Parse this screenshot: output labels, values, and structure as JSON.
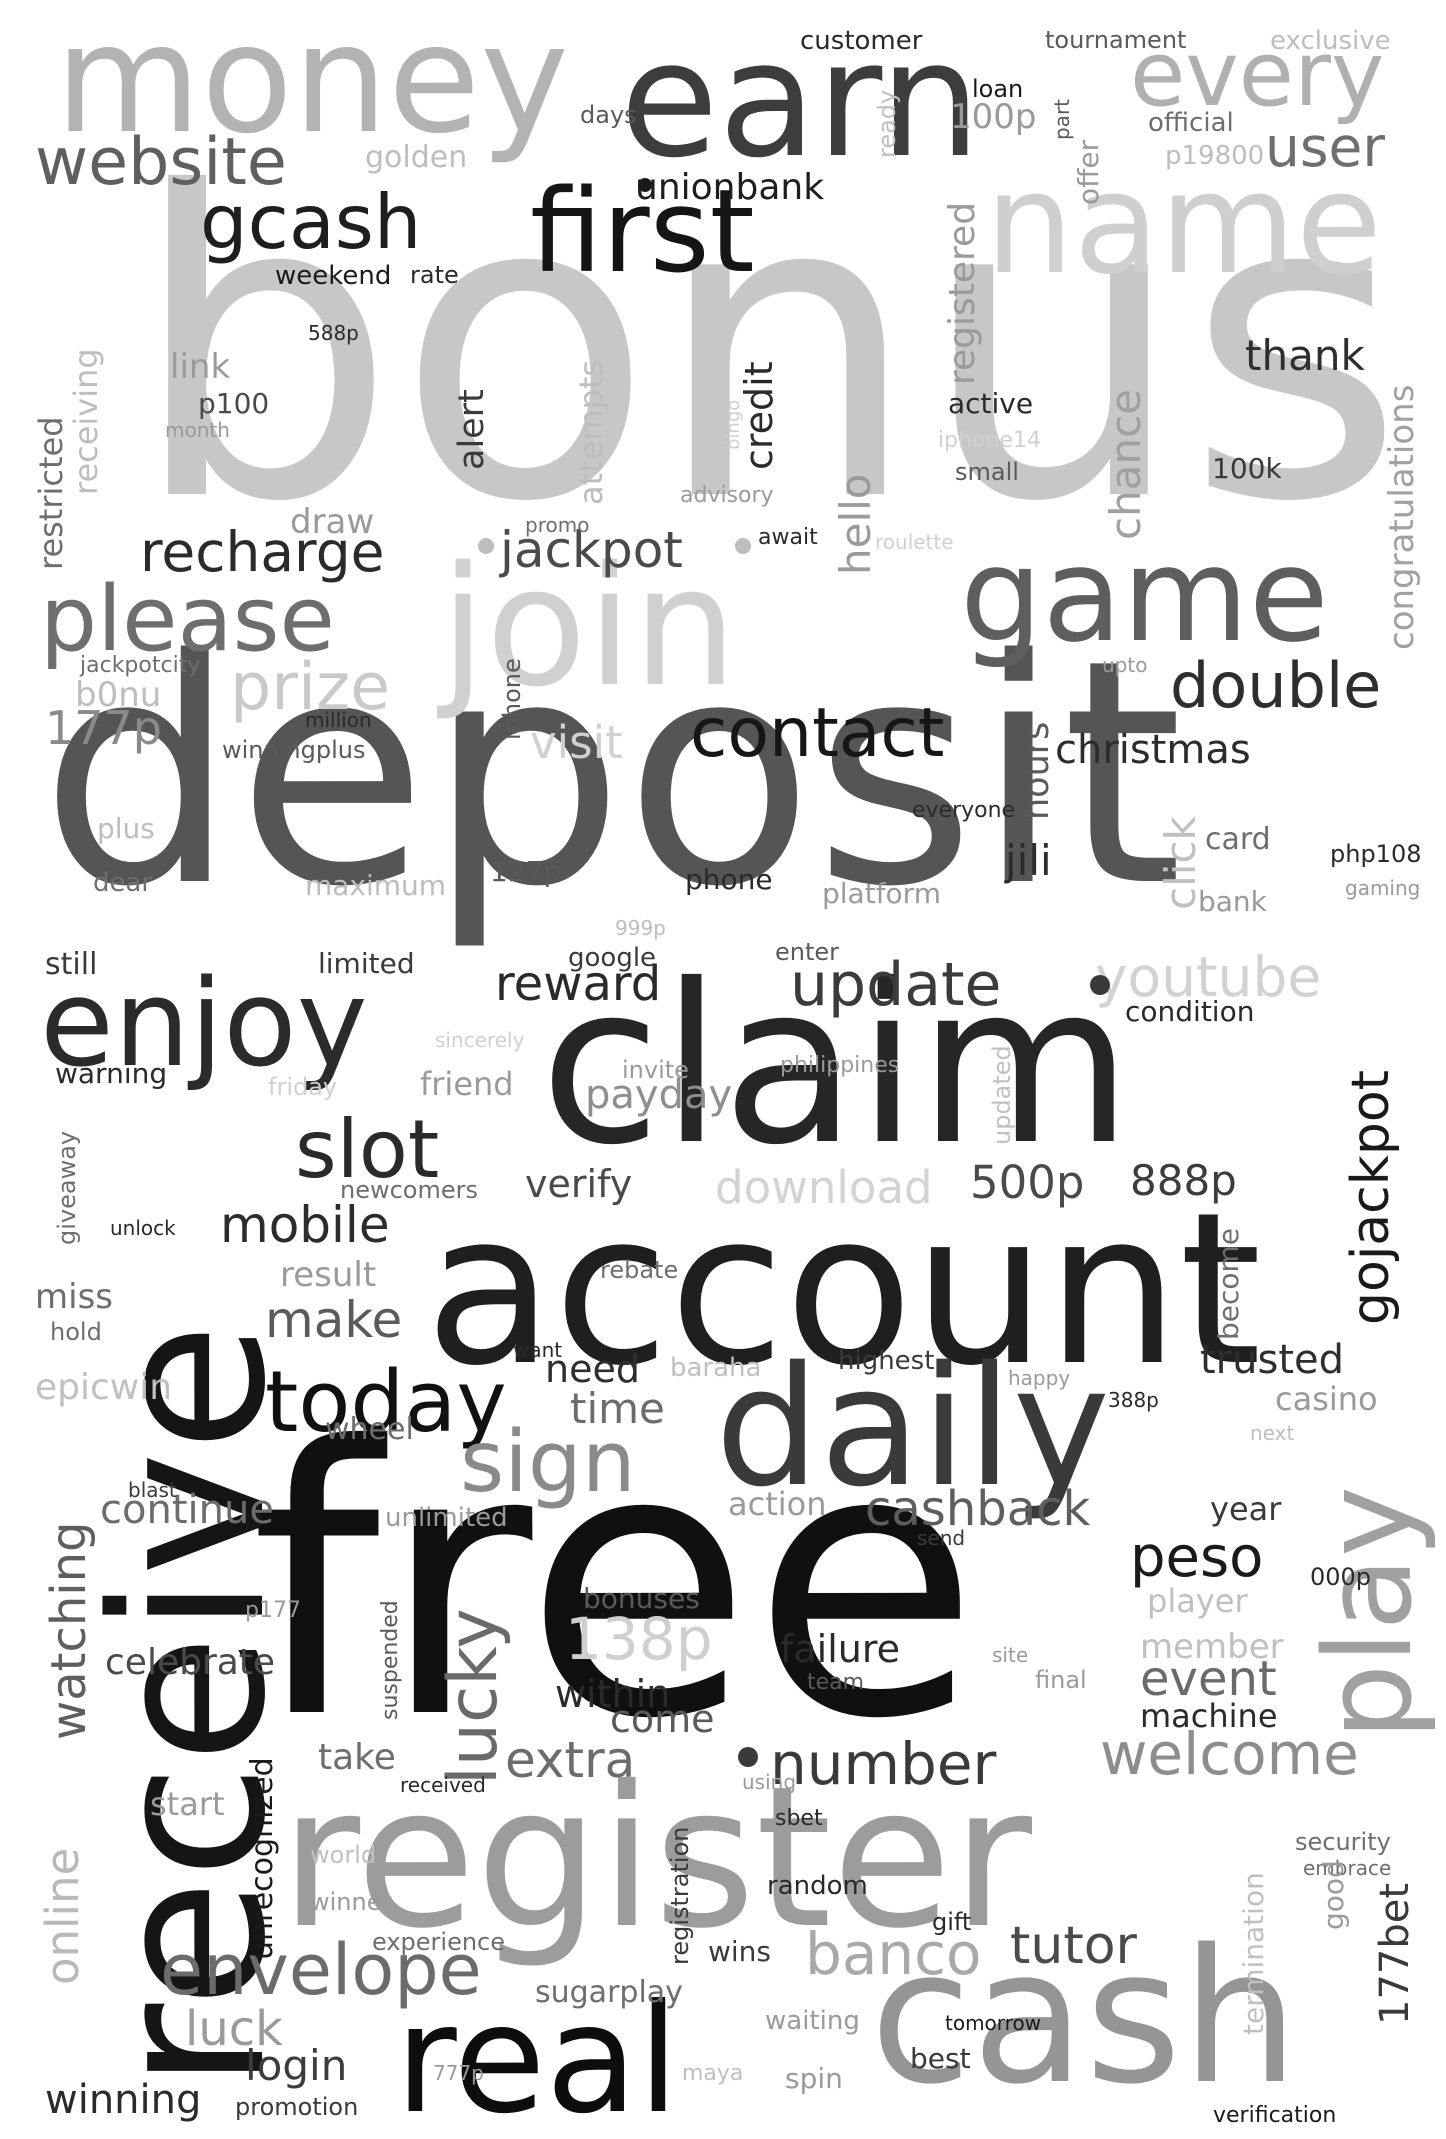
{
  "words": [
    {
      "text": "bonus",
      "color": "#c7c7c7"
    },
    {
      "text": "deposit",
      "color": "#555555"
    },
    {
      "text": "free",
      "color": "#101010"
    },
    {
      "text": "account",
      "color": "#1f1f1f"
    },
    {
      "text": "claim",
      "color": "#262626"
    },
    {
      "text": "receive",
      "color": "#151515"
    },
    {
      "text": "register",
      "color": "#9c9c9c"
    },
    {
      "text": "cash",
      "color": "#959595"
    },
    {
      "text": "join",
      "color": "#d0d0d0"
    },
    {
      "text": "money",
      "color": "#b3b3b3"
    },
    {
      "text": "earn",
      "color": "#3d3d3d"
    },
    {
      "text": "name",
      "color": "#cfcfcf"
    },
    {
      "text": "daily",
      "color": "#3a3a3a"
    },
    {
      "text": "real",
      "color": "#0d0d0d"
    },
    {
      "text": "game",
      "color": "#5e5e5e"
    },
    {
      "text": "enjoy",
      "color": "#2b2b2b"
    },
    {
      "text": "first",
      "color": "#151515"
    },
    {
      "text": "every",
      "color": "#b0b0b0"
    },
    {
      "text": "please",
      "color": "#6e6e6e"
    },
    {
      "text": "play",
      "color": "#a0a0a0"
    },
    {
      "text": "today",
      "color": "#111111"
    },
    {
      "text": "slot",
      "color": "#2a2a2a"
    },
    {
      "text": "sign",
      "color": "#8a8a8a"
    },
    {
      "text": "gcash",
      "color": "#1e1e1e"
    },
    {
      "text": "website",
      "color": "#5f5f5f"
    },
    {
      "text": "envelope",
      "color": "#6b6b6b"
    },
    {
      "text": "contact",
      "color": "#161616"
    },
    {
      "text": "update",
      "color": "#3b3b3b"
    },
    {
      "text": "number",
      "color": "#3a3a3a"
    },
    {
      "text": "welcome",
      "color": "#8d8d8d"
    },
    {
      "text": "banco",
      "color": "#a9a9a9"
    },
    {
      "text": "tutor",
      "color": "#4a4a4a"
    },
    {
      "text": "double",
      "color": "#2e2e2e"
    },
    {
      "text": "prize",
      "color": "#c9c9c9"
    },
    {
      "text": "recharge",
      "color": "#2a2a2a"
    },
    {
      "text": "jackpot",
      "color": "#4a4a4a"
    },
    {
      "text": "user",
      "color": "#6e6e6e"
    },
    {
      "text": "lucky",
      "color": "#6a6a6a"
    },
    {
      "text": "gojackpot",
      "color": "#1a1a1a"
    },
    {
      "text": "youtube",
      "color": "#d2d2d2"
    },
    {
      "text": "reward",
      "color": "#2a2a2a"
    },
    {
      "text": "mobile",
      "color": "#2c2c2c"
    },
    {
      "text": "make",
      "color": "#5b5b5b"
    },
    {
      "text": "peso",
      "color": "#1a1a1a"
    },
    {
      "text": "cashback",
      "color": "#5e5e5e"
    },
    {
      "text": "extra",
      "color": "#6c6c6c"
    },
    {
      "text": "watching",
      "color": "#5e5e5e"
    },
    {
      "text": "login",
      "color": "#3c3c3c"
    },
    {
      "text": "winning",
      "color": "#2a2a2a"
    },
    {
      "text": "luck",
      "color": "#9a9a9a"
    },
    {
      "text": "online",
      "color": "#b9b9b9"
    },
    {
      "text": "download",
      "color": "#d3d3d3"
    },
    {
      "text": "500p",
      "color": "#4a4a4a"
    },
    {
      "text": "888p",
      "color": "#3c3c3c"
    },
    {
      "text": "138p",
      "color": "#cfcfcf"
    },
    {
      "text": "177p",
      "color": "#8a8a8a"
    },
    {
      "text": "177bet",
      "color": "#3a3a3a"
    },
    {
      "text": "christmas",
      "color": "#2c2c2c"
    },
    {
      "text": "hours",
      "color": "#5a5a5a"
    },
    {
      "text": "jili",
      "color": "#2c2c2c"
    },
    {
      "text": "payday",
      "color": "#8e8e8e"
    },
    {
      "text": "verify",
      "color": "#4a4a4a"
    },
    {
      "text": "continue",
      "color": "#6c6c6c"
    },
    {
      "text": "celebrate",
      "color": "#4a4a4a"
    },
    {
      "text": "within",
      "color": "#2a2a2a"
    },
    {
      "text": "come",
      "color": "#5a5a5a"
    },
    {
      "text": "failure",
      "color": "#2a2a2a"
    },
    {
      "text": "event",
      "color": "#6a6a6a"
    },
    {
      "text": "machine",
      "color": "#2a2a2a"
    },
    {
      "text": "trusted",
      "color": "#2e2e2e"
    },
    {
      "text": "need",
      "color": "#2e2e2e"
    },
    {
      "text": "time",
      "color": "#6c6c6c"
    },
    {
      "text": "thank",
      "color": "#2e2e2e"
    },
    {
      "text": "credit",
      "color": "#2a2a2a"
    },
    {
      "text": "alert",
      "color": "#3a3a3a"
    },
    {
      "text": "registered",
      "color": "#9a9a9a"
    },
    {
      "text": "congratulations",
      "color": "#a0a0a0"
    },
    {
      "text": "chance",
      "color": "#a0a0a0"
    },
    {
      "text": "hello",
      "color": "#9a9a9a"
    },
    {
      "text": "attempts",
      "color": "#bdbdbd"
    },
    {
      "text": "restricted",
      "color": "#6e6e6e"
    },
    {
      "text": "receiving",
      "color": "#bdbdbd"
    },
    {
      "text": "unionbank",
      "color": "#1e1e1e"
    },
    {
      "text": "customer",
      "color": "#2a2a2a"
    },
    {
      "text": "tournament",
      "color": "#5a5a5a"
    },
    {
      "text": "exclusive",
      "color": "#bdbdbd"
    },
    {
      "text": "days",
      "color": "#5a5a5a"
    },
    {
      "text": "loan",
      "color": "#1a1a1a"
    },
    {
      "text": "100p",
      "color": "#9a9a9a"
    },
    {
      "text": "official",
      "color": "#6e6e6e"
    },
    {
      "text": "p19800",
      "color": "#bdbdbd"
    },
    {
      "text": "golden",
      "color": "#bdbdbd"
    },
    {
      "text": "weekend",
      "color": "#1a1a1a"
    },
    {
      "text": "rate",
      "color": "#2a2a2a"
    },
    {
      "text": "588p",
      "color": "#2a2a2a"
    },
    {
      "text": "link",
      "color": "#9a9a9a"
    },
    {
      "text": "p100",
      "color": "#4a4a4a"
    },
    {
      "text": "month",
      "color": "#9a9a9a"
    },
    {
      "text": "active",
      "color": "#2a2a2a"
    },
    {
      "text": "iphone14",
      "color": "#d0d0d0"
    },
    {
      "text": "small",
      "color": "#5a5a5a"
    },
    {
      "text": "100k",
      "color": "#3a3a3a"
    },
    {
      "text": "advisory",
      "color": "#9a9a9a"
    },
    {
      "text": "promo",
      "color": "#6e6e6e"
    },
    {
      "text": "await",
      "color": "#2a2a2a"
    },
    {
      "text": "roulette",
      "color": "#d0d0d0"
    },
    {
      "text": "draw",
      "color": "#9a9a9a"
    },
    {
      "text": "jackpotcity",
      "color": "#6e6e6e"
    },
    {
      "text": "b0nu",
      "color": "#bdbdbd"
    },
    {
      "text": "million",
      "color": "#2a2a2a"
    },
    {
      "text": "winningplus",
      "color": "#5a5a5a"
    },
    {
      "text": "iphone",
      "color": "#5a5a5a"
    },
    {
      "text": "visit",
      "color": "#d0d0d0"
    },
    {
      "text": "upto",
      "color": "#9a9a9a"
    },
    {
      "text": "plus",
      "color": "#bdbdbd"
    },
    {
      "text": "dear",
      "color": "#6e6e6e"
    },
    {
      "text": "maximum",
      "color": "#bdbdbd"
    },
    {
      "text": "127p",
      "color": "#5a5a5a"
    },
    {
      "text": "phone",
      "color": "#2a2a2a"
    },
    {
      "text": "everyone",
      "color": "#2a2a2a"
    },
    {
      "text": "click",
      "color": "#c0c0c0"
    },
    {
      "text": "card",
      "color": "#6e6e6e"
    },
    {
      "text": "bank",
      "color": "#9a9a9a"
    },
    {
      "text": "php108",
      "color": "#2a2a2a"
    },
    {
      "text": "gaming",
      "color": "#9a9a9a"
    },
    {
      "text": "platform",
      "color": "#9a9a9a"
    },
    {
      "text": "999p",
      "color": "#bdbdbd"
    },
    {
      "text": "still",
      "color": "#3a3a3a"
    },
    {
      "text": "limited",
      "color": "#3a3a3a"
    },
    {
      "text": "google",
      "color": "#3a3a3a"
    },
    {
      "text": "enter",
      "color": "#5a5a5a"
    },
    {
      "text": "condition",
      "color": "#2a2a2a"
    },
    {
      "text": "sincerely",
      "color": "#d0d0d0"
    },
    {
      "text": "warning",
      "color": "#2a2a2a"
    },
    {
      "text": "friday",
      "color": "#d0d0d0"
    },
    {
      "text": "friend",
      "color": "#9a9a9a"
    },
    {
      "text": "invite",
      "color": "#9a9a9a"
    },
    {
      "text": "philippines",
      "color": "#9a9a9a"
    },
    {
      "text": "updated",
      "color": "#c0c0c0"
    },
    {
      "text": "giveaway",
      "color": "#6e6e6e"
    },
    {
      "text": "newcomers",
      "color": "#6e6e6e"
    },
    {
      "text": "unlock",
      "color": "#2a2a2a"
    },
    {
      "text": "result",
      "color": "#9a9a9a"
    },
    {
      "text": "rebate",
      "color": "#6e6e6e"
    },
    {
      "text": "become",
      "color": "#6e6e6e"
    },
    {
      "text": "miss",
      "color": "#6e6e6e"
    },
    {
      "text": "hold",
      "color": "#6e6e6e"
    },
    {
      "text": "want",
      "color": "#2a2a2a"
    },
    {
      "text": "baraha",
      "color": "#c0c0c0"
    },
    {
      "text": "highest",
      "color": "#3a3a3a"
    },
    {
      "text": "happy",
      "color": "#9a9a9a"
    },
    {
      "text": "388p",
      "color": "#2a2a2a"
    },
    {
      "text": "casino",
      "color": "#9a9a9a"
    },
    {
      "text": "next",
      "color": "#c0c0c0"
    },
    {
      "text": "epicwin",
      "color": "#c0c0c0"
    },
    {
      "text": "wheel",
      "color": "#6e6e6e"
    },
    {
      "text": "blast",
      "color": "#3a3a3a"
    },
    {
      "text": "unlimited",
      "color": "#9a9a9a"
    },
    {
      "text": "action",
      "color": "#9a9a9a"
    },
    {
      "text": "send",
      "color": "#3a3a3a"
    },
    {
      "text": "year",
      "color": "#3a3a3a"
    },
    {
      "text": "000p",
      "color": "#2a2a2a"
    },
    {
      "text": "player",
      "color": "#c0c0c0"
    },
    {
      "text": "p177",
      "color": "#9a9a9a"
    },
    {
      "text": "bonuses",
      "color": "#5a5a5a"
    },
    {
      "text": "suspended",
      "color": "#5a5a5a"
    },
    {
      "text": "site",
      "color": "#9a9a9a"
    },
    {
      "text": "team",
      "color": "#5a5a5a"
    },
    {
      "text": "final",
      "color": "#9a9a9a"
    },
    {
      "text": "member",
      "color": "#c0c0c0"
    },
    {
      "text": "unrecognized",
      "color": "#1a1a1a"
    },
    {
      "text": "take",
      "color": "#6e6e6e"
    },
    {
      "text": "start",
      "color": "#9a9a9a"
    },
    {
      "text": "received",
      "color": "#2a2a2a"
    },
    {
      "text": "using",
      "color": "#9a9a9a"
    },
    {
      "text": "registration",
      "color": "#3a3a3a"
    },
    {
      "text": "sbet",
      "color": "#2a2a2a"
    },
    {
      "text": "random",
      "color": "#2a2a2a"
    },
    {
      "text": "world",
      "color": "#c0c0c0"
    },
    {
      "text": "winner",
      "color": "#9a9a9a"
    },
    {
      "text": "experience",
      "color": "#6e6e6e"
    },
    {
      "text": "wins",
      "color": "#3a3a3a"
    },
    {
      "text": "gift",
      "color": "#2a2a2a"
    },
    {
      "text": "termination",
      "color": "#c0c0c0"
    },
    {
      "text": "security",
      "color": "#6e6e6e"
    },
    {
      "text": "embrace",
      "color": "#6e6e6e"
    },
    {
      "text": "good",
      "color": "#9a9a9a"
    },
    {
      "text": "sugarplay",
      "color": "#6e6e6e"
    },
    {
      "text": "waiting",
      "color": "#9a9a9a"
    },
    {
      "text": "tomorrow",
      "color": "#1a1a1a"
    },
    {
      "text": "best",
      "color": "#3a3a3a"
    },
    {
      "text": "777p",
      "color": "#9a9a9a"
    },
    {
      "text": "maya",
      "color": "#c0c0c0"
    },
    {
      "text": "spin",
      "color": "#9a9a9a"
    },
    {
      "text": "promotion",
      "color": "#3a3a3a"
    },
    {
      "text": "verification",
      "color": "#1a1a1a"
    },
    {
      "text": "bingo",
      "color": "#d0d0d0"
    },
    {
      "text": "ready",
      "color": "#c0c0c0"
    },
    {
      "text": "part",
      "color": "#5a5a5a"
    },
    {
      "text": "offer",
      "color": "#9a9a9a"
    }
  ]
}
